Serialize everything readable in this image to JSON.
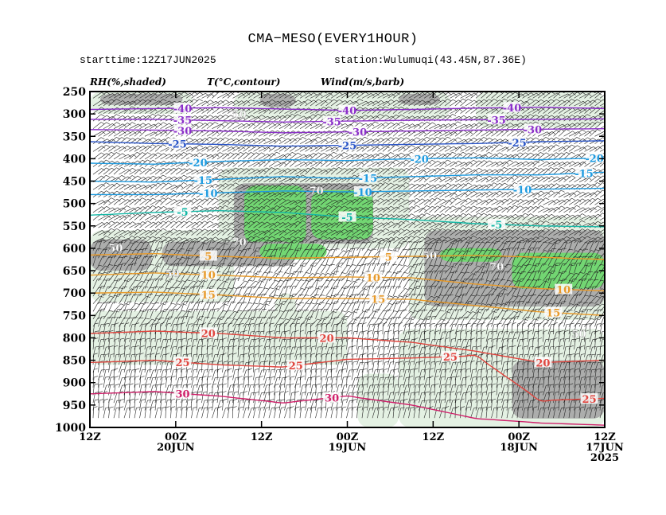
{
  "header": {
    "title": "CMA−MESO(EVERY1HOUR)",
    "starttime": "starttime:12Z17JUN2025",
    "station": "station:Wulumuqi(43.45N,87.36E)"
  },
  "legend": {
    "rh": "RH(%,shaded)",
    "temp": "T(°C,contour)",
    "wind": "Wind(m/s,barb)"
  },
  "colors": {
    "rh50": "#e3f0e1",
    "rh70": "#a9a9a9",
    "rh90": "#6fd86f",
    "t_cold": "#8b2fc9",
    "t_mid_blue": "#2a55c8",
    "t_light_blue": "#1e9be0",
    "t_teal": "#14b8a6",
    "t_orange": "#e89a2a",
    "t_red": "#e0463f",
    "t_crimson": "#d0206a"
  },
  "chart_data": {
    "type": "time-height cross-section",
    "y_axis": {
      "label": "",
      "reversed": true,
      "ylim": [
        250,
        1000
      ],
      "ticks": [
        "250",
        "300",
        "350",
        "400",
        "450",
        "500",
        "550",
        "600",
        "650",
        "700",
        "750",
        "800",
        "850",
        "900",
        "950",
        "1000"
      ]
    },
    "x_axis": {
      "label": "",
      "direction": "time decreasing to the right",
      "ticks": [
        {
          "line1": "12Z",
          "line2": "",
          "line3": ""
        },
        {
          "line1": "00Z",
          "line2": "20JUN",
          "line3": ""
        },
        {
          "line1": "12Z",
          "line2": "",
          "line3": ""
        },
        {
          "line1": "00Z",
          "line2": "19JUN",
          "line3": ""
        },
        {
          "line1": "12Z",
          "line2": "",
          "line3": ""
        },
        {
          "line1": "00Z",
          "line2": "18JUN",
          "line3": ""
        },
        {
          "line1": "12Z",
          "line2": "17JUN",
          "line3": "2025"
        }
      ]
    },
    "temperature_contours": [
      {
        "value": -40,
        "label": "-40",
        "color": "#8b2fc9",
        "levels": [
          290,
          288,
          286,
          289,
          292,
          290,
          287,
          285,
          288
        ]
      },
      {
        "value": -35,
        "label": "-35",
        "color": "#8b2fc9",
        "levels": [
          312,
          312,
          315,
          318,
          316,
          314,
          313,
          312,
          311
        ]
      },
      {
        "value": -30,
        "label": "-30",
        "color": "#8b2fc9",
        "levels": [
          335,
          336,
          338,
          342,
          340,
          338,
          336,
          334,
          333
        ]
      },
      {
        "value": -25,
        "label": "-25",
        "color": "#2a55c8",
        "levels": [
          362,
          366,
          368,
          372,
          370,
          368,
          366,
          362,
          360
        ]
      },
      {
        "value": -20,
        "label": "-20",
        "color": "#1e9be0",
        "levels": [
          410,
          412,
          406,
          402,
          404,
          400,
          398,
          402,
          398
        ]
      },
      {
        "value": -15,
        "label": "-15",
        "color": "#1e9be0",
        "levels": [
          450,
          452,
          446,
          440,
          444,
          440,
          436,
          436,
          430
        ]
      },
      {
        "value": -10,
        "label": "-10",
        "color": "#1e9be0",
        "levels": [
          480,
          480,
          476,
          472,
          474,
          472,
          470,
          468,
          466
        ]
      },
      {
        "value": -5,
        "label": "-5",
        "color": "#14b8a6",
        "levels": [
          526,
          520,
          516,
          520,
          530,
          536,
          545,
          550,
          552
        ]
      },
      {
        "value": 5,
        "label": "5",
        "color": "#e89a2a",
        "levels": [
          615,
          612,
          618,
          622,
          620,
          618,
          616,
          620,
          625
        ]
      },
      {
        "value": 10,
        "label": "10",
        "color": "#e89a2a",
        "levels": [
          660,
          655,
          660,
          666,
          664,
          666,
          680,
          690,
          695
        ]
      },
      {
        "value": 15,
        "label": "15",
        "color": "#e89a2a",
        "levels": [
          700,
          698,
          704,
          712,
          712,
          714,
          728,
          742,
          750
        ]
      },
      {
        "value": 20,
        "label": "20",
        "color": "#e0463f",
        "levels": [
          790,
          785,
          790,
          800,
          800,
          810,
          830,
          855,
          850
        ]
      },
      {
        "value": 25,
        "label": "25",
        "color": "#e0463f",
        "levels": [
          855,
          850,
          860,
          865,
          848,
          845,
          840,
          940,
          935
        ]
      },
      {
        "value": 30,
        "label": "30",
        "color": "#d0206a",
        "levels": [
          925,
          920,
          930,
          945,
          930,
          950,
          980,
          990,
          995
        ]
      }
    ],
    "rh_shading": [
      {
        "threshold": 50,
        "color": "#e3f0e1"
      },
      {
        "threshold": 70,
        "color": "#a9a9a9"
      },
      {
        "threshold": 90,
        "color": "#6fd86f"
      }
    ],
    "rh_labels": [
      "50",
      "70",
      "50",
      "70",
      "50",
      "50",
      "70",
      "50"
    ],
    "contour_label_positions": [
      {
        "label": "-40",
        "t": 0.18,
        "contour": -40
      },
      {
        "label": "-40",
        "t": 0.5,
        "contour": -40
      },
      {
        "label": "-40",
        "t": 0.82,
        "contour": -40
      },
      {
        "label": "-35",
        "t": 0.18,
        "contour": -35
      },
      {
        "label": "-35",
        "t": 0.47,
        "contour": -35
      },
      {
        "label": "-35",
        "t": 0.79,
        "contour": -35
      },
      {
        "label": "-30",
        "t": 0.18,
        "contour": -30
      },
      {
        "label": "-30",
        "t": 0.52,
        "contour": -30
      },
      {
        "label": "-30",
        "t": 0.86,
        "contour": -30
      },
      {
        "label": "-25",
        "t": 0.17,
        "contour": -25
      },
      {
        "label": "-25",
        "t": 0.5,
        "contour": -25
      },
      {
        "label": "-25",
        "t": 0.83,
        "contour": -25
      },
      {
        "label": "-20",
        "t": 0.21,
        "contour": -20
      },
      {
        "label": "-20",
        "t": 0.64,
        "contour": -20
      },
      {
        "label": "-20",
        "t": 0.98,
        "contour": -20
      },
      {
        "label": "-15",
        "t": 0.22,
        "contour": -15
      },
      {
        "label": "-15",
        "t": 0.54,
        "contour": -15
      },
      {
        "label": "-15",
        "t": 0.96,
        "contour": -15
      },
      {
        "label": "-10",
        "t": 0.23,
        "contour": -10
      },
      {
        "label": "-10",
        "t": 0.53,
        "contour": -10
      },
      {
        "label": "-10",
        "t": 0.84,
        "contour": -10
      },
      {
        "label": "-5",
        "t": 0.18,
        "contour": -5
      },
      {
        "label": "-5",
        "t": 0.5,
        "contour": -5
      },
      {
        "label": "-5",
        "t": 0.79,
        "contour": -5
      },
      {
        "label": "5",
        "t": 0.23,
        "contour": 5
      },
      {
        "label": "5",
        "t": 0.58,
        "contour": 5
      },
      {
        "label": "10",
        "t": 0.23,
        "contour": 10
      },
      {
        "label": "10",
        "t": 0.55,
        "contour": 10
      },
      {
        "label": "10",
        "t": 0.92,
        "contour": 10
      },
      {
        "label": "15",
        "t": 0.23,
        "contour": 15
      },
      {
        "label": "15",
        "t": 0.56,
        "contour": 15
      },
      {
        "label": "15",
        "t": 0.9,
        "contour": 15
      },
      {
        "label": "20",
        "t": 0.23,
        "contour": 20
      },
      {
        "label": "20",
        "t": 0.46,
        "contour": 20
      },
      {
        "label": "20",
        "t": 0.88,
        "contour": 20
      },
      {
        "label": "25",
        "t": 0.18,
        "contour": 25
      },
      {
        "label": "25",
        "t": 0.4,
        "contour": 25
      },
      {
        "label": "25",
        "t": 0.7,
        "contour": 25
      },
      {
        "label": "25",
        "t": 0.97,
        "contour": 25
      },
      {
        "label": "30",
        "t": 0.18,
        "contour": 30
      },
      {
        "label": "30",
        "t": 0.47,
        "contour": 30
      }
    ],
    "grid": false,
    "legend_placement": "top"
  }
}
